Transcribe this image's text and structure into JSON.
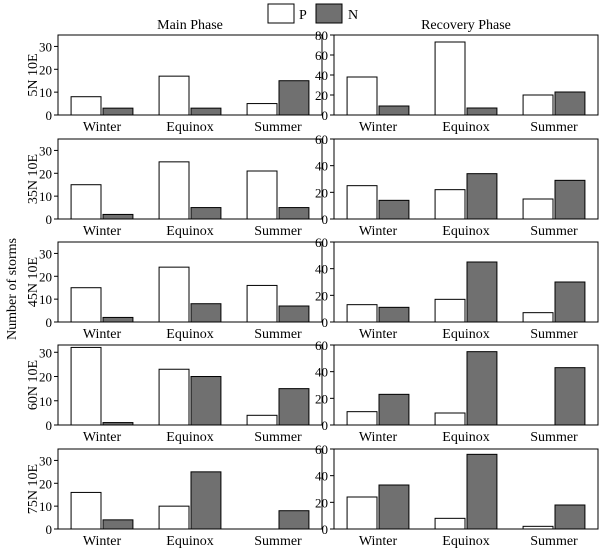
{
  "figure": {
    "ylabel": "Number of storms",
    "col_titles": [
      "Main Phase",
      "Recovery Phase"
    ],
    "legend": [
      {
        "label": "P",
        "fill": "#ffffff"
      },
      {
        "label": "N",
        "fill": "#707070"
      }
    ]
  },
  "colors": {
    "P": "#ffffff",
    "N": "#707070",
    "stroke": "#000000"
  },
  "chart_data": [
    {
      "type": "bar",
      "row_label": "5N 10E",
      "phase": "Main Phase",
      "categories": [
        "Winter",
        "Equinox",
        "Summer"
      ],
      "ylim": [
        0,
        35
      ],
      "yticks": [
        0,
        10,
        20,
        30
      ],
      "series": [
        {
          "name": "P",
          "values": [
            8,
            17,
            5
          ]
        },
        {
          "name": "N",
          "values": [
            3,
            3,
            15
          ]
        }
      ]
    },
    {
      "type": "bar",
      "row_label": "5N 10E",
      "phase": "Recovery Phase",
      "categories": [
        "Winter",
        "Equinox",
        "Summer"
      ],
      "ylim": [
        0,
        80
      ],
      "yticks": [
        0,
        20,
        40,
        60,
        80
      ],
      "series": [
        {
          "name": "P",
          "values": [
            38,
            73,
            20
          ]
        },
        {
          "name": "N",
          "values": [
            9,
            7,
            23
          ]
        }
      ]
    },
    {
      "type": "bar",
      "row_label": "35N 10E",
      "phase": "Main Phase",
      "categories": [
        "Winter",
        "Equinox",
        "Summer"
      ],
      "ylim": [
        0,
        35
      ],
      "yticks": [
        0,
        10,
        20,
        30
      ],
      "series": [
        {
          "name": "P",
          "values": [
            15,
            25,
            21
          ]
        },
        {
          "name": "N",
          "values": [
            2,
            5,
            5
          ]
        }
      ]
    },
    {
      "type": "bar",
      "row_label": "35N 10E",
      "phase": "Recovery Phase",
      "categories": [
        "Winter",
        "Equinox",
        "Summer"
      ],
      "ylim": [
        0,
        60
      ],
      "yticks": [
        0,
        20,
        40,
        60
      ],
      "series": [
        {
          "name": "P",
          "values": [
            25,
            22,
            15
          ]
        },
        {
          "name": "N",
          "values": [
            14,
            34,
            29
          ]
        }
      ]
    },
    {
      "type": "bar",
      "row_label": "45N 10E",
      "phase": "Main Phase",
      "categories": [
        "Winter",
        "Equinox",
        "Summer"
      ],
      "ylim": [
        0,
        35
      ],
      "yticks": [
        0,
        10,
        20,
        30
      ],
      "series": [
        {
          "name": "P",
          "values": [
            15,
            24,
            16
          ]
        },
        {
          "name": "N",
          "values": [
            2,
            8,
            7
          ]
        }
      ]
    },
    {
      "type": "bar",
      "row_label": "45N 10E",
      "phase": "Recovery Phase",
      "categories": [
        "Winter",
        "Equinox",
        "Summer"
      ],
      "ylim": [
        0,
        60
      ],
      "yticks": [
        0,
        20,
        40,
        60
      ],
      "series": [
        {
          "name": "P",
          "values": [
            13,
            17,
            7
          ]
        },
        {
          "name": "N",
          "values": [
            11,
            45,
            30
          ]
        }
      ]
    },
    {
      "type": "bar",
      "row_label": "60N 10E",
      "phase": "Main Phase",
      "categories": [
        "Winter",
        "Equinox",
        "Summer"
      ],
      "ylim": [
        0,
        33
      ],
      "yticks": [
        0,
        10,
        20,
        30
      ],
      "series": [
        {
          "name": "P",
          "values": [
            32,
            23,
            4
          ]
        },
        {
          "name": "N",
          "values": [
            1,
            20,
            15
          ]
        }
      ]
    },
    {
      "type": "bar",
      "row_label": "60N 10E",
      "phase": "Recovery Phase",
      "categories": [
        "Winter",
        "Equinox",
        "Summer"
      ],
      "ylim": [
        0,
        60
      ],
      "yticks": [
        0,
        20,
        40,
        60
      ],
      "series": [
        {
          "name": "P",
          "values": [
            10,
            9,
            0
          ]
        },
        {
          "name": "N",
          "values": [
            23,
            55,
            43
          ]
        }
      ]
    },
    {
      "type": "bar",
      "row_label": "75N 10E",
      "phase": "Main Phase",
      "categories": [
        "Winter",
        "Equinox",
        "Summer"
      ],
      "ylim": [
        0,
        35
      ],
      "yticks": [
        0,
        10,
        20,
        30
      ],
      "series": [
        {
          "name": "P",
          "values": [
            16,
            10,
            0
          ]
        },
        {
          "name": "N",
          "values": [
            4,
            25,
            8
          ]
        }
      ]
    },
    {
      "type": "bar",
      "row_label": "75N 10E",
      "phase": "Recovery Phase",
      "categories": [
        "Winter",
        "Equinox",
        "Summer"
      ],
      "ylim": [
        0,
        60
      ],
      "yticks": [
        0,
        20,
        40,
        60
      ],
      "series": [
        {
          "name": "P",
          "values": [
            24,
            8,
            2
          ]
        },
        {
          "name": "N",
          "values": [
            33,
            56,
            18
          ]
        }
      ]
    }
  ]
}
